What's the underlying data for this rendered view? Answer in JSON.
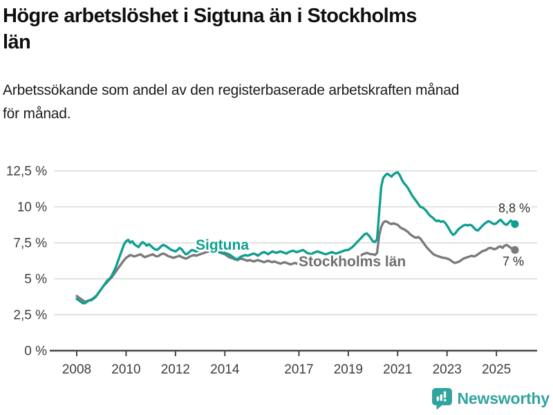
{
  "page": {
    "background": "#ffffff"
  },
  "chart_data": {
    "type": "line",
    "title_lines": [
      "Högre arbetslöshet i Sigtuna än i Stockholms",
      "län"
    ],
    "subtitle_lines": [
      "Arbetssökande som andel av den registerbaserade arbetskraften månad",
      "för månad."
    ],
    "x_axis": {
      "start": "2008-01",
      "end": "2025-10",
      "points_per_year": 12,
      "ticks": [
        {
          "year": 2008,
          "label": "2008"
        },
        {
          "year": 2010,
          "label": "2010"
        },
        {
          "year": 2012,
          "label": "2012"
        },
        {
          "year": 2014,
          "label": "2014"
        },
        {
          "year": 2017,
          "label": "2017"
        },
        {
          "year": 2019,
          "label": "2019"
        },
        {
          "year": 2021,
          "label": "2021"
        },
        {
          "year": 2023,
          "label": "2023"
        },
        {
          "year": 2025,
          "label": "2025"
        }
      ]
    },
    "y_axis": {
      "min": 0,
      "max": 12.5,
      "unit": "%",
      "ticks": [
        {
          "value": 0,
          "label": "0 %"
        },
        {
          "value": 2.5,
          "label": "2,5 %"
        },
        {
          "value": 5,
          "label": "5 %"
        },
        {
          "value": 7.5,
          "label": "7,5 %"
        },
        {
          "value": 10,
          "label": "10 %"
        },
        {
          "value": 12.5,
          "label": "12,5 %"
        }
      ]
    },
    "grid": "horizontal",
    "legend": "inline-labels",
    "series": [
      {
        "name": "Sigtuna",
        "color": "#0f9f90",
        "label_color": "#0f9f90",
        "end_label": "8,8 %",
        "end_value": 8.8,
        "values": [
          3.6,
          3.5,
          3.4,
          3.3,
          3.3,
          3.4,
          3.5,
          3.5,
          3.6,
          3.7,
          3.9,
          4.1,
          4.3,
          4.5,
          4.7,
          4.9,
          5.0,
          5.2,
          5.5,
          5.8,
          6.2,
          6.6,
          7.0,
          7.4,
          7.6,
          7.7,
          7.5,
          7.6,
          7.4,
          7.3,
          7.2,
          7.4,
          7.55,
          7.45,
          7.3,
          7.4,
          7.3,
          7.15,
          7.05,
          7.0,
          7.1,
          7.25,
          7.35,
          7.3,
          7.2,
          7.1,
          7.0,
          6.95,
          6.9,
          7.0,
          7.15,
          7.05,
          6.85,
          6.7,
          6.75,
          6.9,
          7.0,
          6.95,
          6.9,
          6.95,
          7.0,
          7.05,
          7.1,
          7.0,
          6.95,
          6.9,
          6.85,
          6.9,
          6.95,
          6.9,
          6.85,
          6.8,
          6.8,
          6.75,
          6.7,
          6.6,
          6.5,
          6.4,
          6.35,
          6.45,
          6.55,
          6.6,
          6.65,
          6.6,
          6.65,
          6.7,
          6.75,
          6.7,
          6.6,
          6.7,
          6.8,
          6.85,
          6.8,
          6.7,
          6.8,
          6.9,
          6.85,
          6.8,
          6.85,
          6.9,
          6.85,
          6.8,
          6.75,
          6.85,
          6.9,
          6.95,
          6.9,
          6.85,
          6.9,
          6.95,
          7.0,
          6.9,
          6.8,
          6.75,
          6.7,
          6.8,
          6.85,
          6.9,
          6.85,
          6.8,
          6.75,
          6.7,
          6.75,
          6.8,
          6.85,
          6.8,
          6.75,
          6.8,
          6.85,
          6.9,
          6.95,
          7.0,
          7.0,
          7.1,
          7.2,
          7.35,
          7.5,
          7.65,
          7.8,
          7.95,
          8.1,
          8.15,
          8.0,
          7.8,
          7.6,
          7.55,
          7.75,
          9.6,
          11.4,
          12.0,
          12.2,
          12.3,
          12.2,
          12.1,
          12.25,
          12.35,
          12.4,
          12.2,
          11.9,
          11.65,
          11.5,
          11.3,
          11.05,
          10.8,
          10.6,
          10.4,
          10.2,
          10.0,
          9.95,
          9.85,
          9.7,
          9.5,
          9.35,
          9.25,
          9.1,
          9.0,
          9.05,
          8.95,
          9.0,
          8.9,
          8.7,
          8.45,
          8.2,
          8.05,
          8.15,
          8.35,
          8.5,
          8.6,
          8.7,
          8.75,
          8.7,
          8.75,
          8.7,
          8.55,
          8.4,
          8.35,
          8.5,
          8.65,
          8.8,
          8.9,
          9.0,
          8.95,
          8.85,
          8.8,
          8.85,
          9.0,
          9.1,
          8.95,
          8.8,
          8.75,
          8.9,
          9.05,
          8.9,
          8.8
        ]
      },
      {
        "name": "Stockholms län",
        "color": "#7a7a7a",
        "label_color": "#6e6e6e",
        "end_label": "7 %",
        "end_value": 7.0,
        "values": [
          3.8,
          3.7,
          3.6,
          3.5,
          3.4,
          3.45,
          3.5,
          3.55,
          3.65,
          3.75,
          3.9,
          4.1,
          4.3,
          4.5,
          4.65,
          4.8,
          4.95,
          5.1,
          5.3,
          5.5,
          5.7,
          5.9,
          6.1,
          6.3,
          6.45,
          6.55,
          6.65,
          6.6,
          6.55,
          6.6,
          6.65,
          6.7,
          6.6,
          6.5,
          6.55,
          6.6,
          6.65,
          6.7,
          6.6,
          6.55,
          6.6,
          6.7,
          6.75,
          6.7,
          6.6,
          6.55,
          6.5,
          6.45,
          6.5,
          6.55,
          6.6,
          6.5,
          6.45,
          6.4,
          6.45,
          6.55,
          6.6,
          6.65,
          6.6,
          6.65,
          6.7,
          6.75,
          6.8,
          6.85,
          6.9,
          6.85,
          6.8,
          6.85,
          6.9,
          6.85,
          6.8,
          6.75,
          6.7,
          6.6,
          6.5,
          6.45,
          6.4,
          6.35,
          6.3,
          6.35,
          6.4,
          6.35,
          6.3,
          6.25,
          6.3,
          6.25,
          6.2,
          6.25,
          6.3,
          6.25,
          6.2,
          6.15,
          6.2,
          6.25,
          6.2,
          6.15,
          6.2,
          6.15,
          6.1,
          6.05,
          6.1,
          6.15,
          6.1,
          6.05,
          6.0,
          6.05,
          6.1,
          6.05,
          6.1,
          6.15,
          6.2,
          6.1,
          6.05,
          6.0,
          6.05,
          6.1,
          6.15,
          6.1,
          6.05,
          6.0,
          6.05,
          6.0,
          6.05,
          6.1,
          6.15,
          6.1,
          6.05,
          6.0,
          6.05,
          6.1,
          6.15,
          6.2,
          6.2,
          6.25,
          6.3,
          6.35,
          6.45,
          6.55,
          6.6,
          6.7,
          6.75,
          6.8,
          6.75,
          6.7,
          6.7,
          6.65,
          6.8,
          8.0,
          8.6,
          8.9,
          9.0,
          8.95,
          8.85,
          8.8,
          8.85,
          8.8,
          8.75,
          8.6,
          8.5,
          8.45,
          8.35,
          8.25,
          8.1,
          8.0,
          7.9,
          7.85,
          7.9,
          7.8,
          7.6,
          7.4,
          7.2,
          7.05,
          6.9,
          6.75,
          6.65,
          6.6,
          6.55,
          6.5,
          6.45,
          6.45,
          6.4,
          6.35,
          6.25,
          6.15,
          6.1,
          6.15,
          6.2,
          6.3,
          6.4,
          6.45,
          6.5,
          6.55,
          6.6,
          6.55,
          6.6,
          6.7,
          6.8,
          6.9,
          6.95,
          7.0,
          7.1,
          7.15,
          7.1,
          7.05,
          7.1,
          7.2,
          7.25,
          7.15,
          7.3,
          7.35,
          7.25,
          7.15,
          7.05,
          7.0
        ]
      }
    ]
  },
  "footer": {
    "brand": "Newsworthy",
    "brand_color": "#31a49e"
  }
}
